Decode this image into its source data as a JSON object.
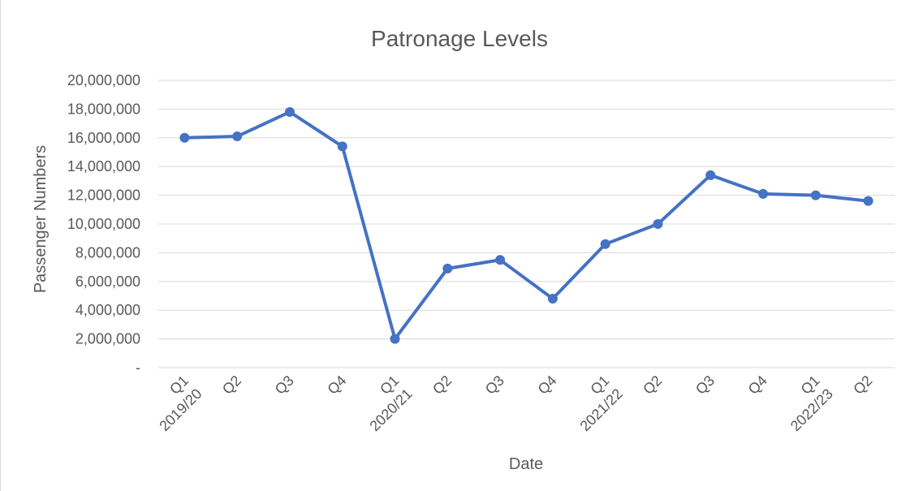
{
  "chart_data": {
    "type": "line",
    "title": "Patronage Levels",
    "xlabel": "Date",
    "ylabel": "Passenger Numbers",
    "grid": true,
    "legend": "none",
    "ylim": [
      0,
      20000000
    ],
    "y_ticks": [
      {
        "value": 0,
        "label": "-"
      },
      {
        "value": 2000000,
        "label": "2,000,000"
      },
      {
        "value": 4000000,
        "label": "4,000,000"
      },
      {
        "value": 6000000,
        "label": "6,000,000"
      },
      {
        "value": 8000000,
        "label": "8,000,000"
      },
      {
        "value": 10000000,
        "label": "10,000,000"
      },
      {
        "value": 12000000,
        "label": "12,000,000"
      },
      {
        "value": 14000000,
        "label": "14,000,000"
      },
      {
        "value": 16000000,
        "label": "16,000,000"
      },
      {
        "value": 18000000,
        "label": "18,000,000"
      },
      {
        "value": 20000000,
        "label": "20,000,000"
      }
    ],
    "categories": [
      {
        "quarter": "Q1",
        "year": "2019/20"
      },
      {
        "quarter": "Q2",
        "year": ""
      },
      {
        "quarter": "Q3",
        "year": ""
      },
      {
        "quarter": "Q4",
        "year": ""
      },
      {
        "quarter": "Q1",
        "year": "2020/21"
      },
      {
        "quarter": "Q2",
        "year": ""
      },
      {
        "quarter": "Q3",
        "year": ""
      },
      {
        "quarter": "Q4",
        "year": ""
      },
      {
        "quarter": "Q1",
        "year": "2021/22"
      },
      {
        "quarter": "Q2",
        "year": ""
      },
      {
        "quarter": "Q3",
        "year": ""
      },
      {
        "quarter": "Q4",
        "year": ""
      },
      {
        "quarter": "Q1",
        "year": "2022/23"
      },
      {
        "quarter": "Q2",
        "year": ""
      }
    ],
    "series": [
      {
        "color": "#4472c4",
        "values": [
          16000000,
          16100000,
          17800000,
          15400000,
          2000000,
          6900000,
          7500000,
          4800000,
          8600000,
          10000000,
          13400000,
          12100000,
          12000000,
          11600000
        ]
      }
    ]
  }
}
